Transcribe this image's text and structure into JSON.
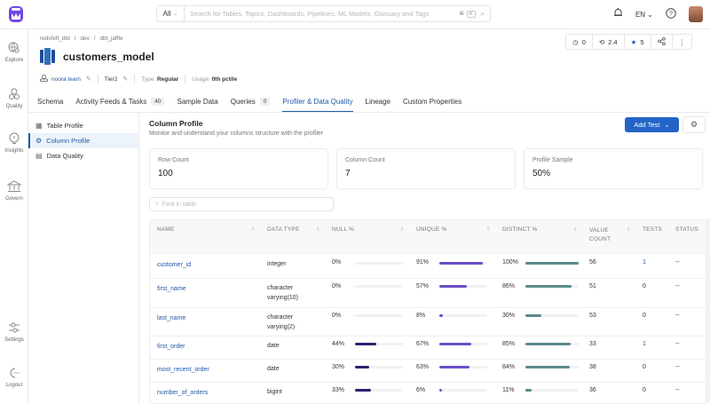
{
  "topbar": {
    "search_scope": "All",
    "search_placeholder": "Search for Tables, Topics, Dashboards, Pipelines, ML Models, Glossary and Tags",
    "shortcut_cmd": "⌘",
    "shortcut_key": "K",
    "language": "EN"
  },
  "leftnav": {
    "items": [
      {
        "label": "Explore",
        "icon": "globe-search-icon"
      },
      {
        "label": "Quality",
        "icon": "quality-icon"
      },
      {
        "label": "Insights",
        "icon": "bulb-icon"
      },
      {
        "label": "Govern",
        "icon": "bank-icon"
      },
      {
        "label": "Settings",
        "icon": "sliders-icon"
      },
      {
        "label": "Logout",
        "icon": "logout-icon"
      }
    ]
  },
  "header": {
    "breadcrumb": [
      "redshift_dbt",
      "/",
      "dev",
      "/",
      "dbt_jaffle"
    ],
    "title": "customers_model",
    "owner": "noora team",
    "tier": "Tier2",
    "type_label": "Type:",
    "type_value": "Regular",
    "usage_label": "Usage:",
    "usage_value": "0th pctile",
    "actions": {
      "tasks": "0",
      "version": "2.4",
      "stars": "5"
    },
    "tabs": [
      {
        "label": "Schema",
        "count": null
      },
      {
        "label": "Activity Feeds & Tasks",
        "count": "40"
      },
      {
        "label": "Sample Data",
        "count": null
      },
      {
        "label": "Queries",
        "count": "0"
      },
      {
        "label": "Profiler & Data Quality",
        "count": null,
        "active": true
      },
      {
        "label": "Lineage",
        "count": null
      },
      {
        "label": "Custom Properties",
        "count": null
      }
    ]
  },
  "sidepanel": {
    "items": [
      {
        "label": "Table Profile"
      },
      {
        "label": "Column Profile",
        "active": true
      },
      {
        "label": "Data Quality"
      }
    ]
  },
  "main": {
    "title": "Column Profile",
    "subtitle": "Monitor and understand your columns structure with the profiler",
    "add_test_label": "Add Test",
    "cards": [
      {
        "label": "Row Count",
        "value": "100"
      },
      {
        "label": "Column Count",
        "value": "7"
      },
      {
        "label": "Profile Sample",
        "value": "50%"
      }
    ],
    "find_placeholder": "Find in table",
    "columns": [
      "NAME",
      "DATA TYPE",
      "NULL %",
      "UNIQUE %",
      "DISTINCT %",
      "VALUE COUNT",
      "TESTS",
      "STATUS"
    ],
    "rows": [
      {
        "name": "customer_id",
        "type": "integer",
        "null": "0%",
        "null_v": 0,
        "unique": "91%",
        "unique_v": 91,
        "distinct": "100%",
        "distinct_v": 100,
        "count": "56",
        "tests": "1",
        "status": "--"
      },
      {
        "name": "first_name",
        "type": "character varying(10)",
        "null": "0%",
        "null_v": 0,
        "unique": "57%",
        "unique_v": 57,
        "distinct": "86%",
        "distinct_v": 86,
        "count": "51",
        "tests": "0",
        "status": "--"
      },
      {
        "name": "last_name",
        "type": "character varying(2)",
        "null": "0%",
        "null_v": 0,
        "unique": "8%",
        "unique_v": 8,
        "distinct": "30%",
        "distinct_v": 30,
        "count": "53",
        "tests": "0",
        "status": "--"
      },
      {
        "name": "first_order",
        "type": "date",
        "null": "44%",
        "null_v": 44,
        "unique": "67%",
        "unique_v": 67,
        "distinct": "85%",
        "distinct_v": 85,
        "count": "33",
        "tests": "1",
        "status": "--"
      },
      {
        "name": "most_recent_order",
        "type": "date",
        "null": "30%",
        "null_v": 30,
        "unique": "63%",
        "unique_v": 63,
        "distinct": "84%",
        "distinct_v": 84,
        "count": "38",
        "tests": "0",
        "status": "--"
      },
      {
        "name": "number_of_orders",
        "type": "bigint",
        "null": "33%",
        "null_v": 33,
        "unique": "6%",
        "unique_v": 6,
        "distinct": "11%",
        "distinct_v": 11,
        "count": "36",
        "tests": "0",
        "status": "--"
      }
    ]
  },
  "colors": {
    "accent": "#1e58a8",
    "button": "#2365c7",
    "null_bar": "#2a2370",
    "unique_bar": "#6a4fc7",
    "distinct_bar": "#5b8a8c"
  }
}
